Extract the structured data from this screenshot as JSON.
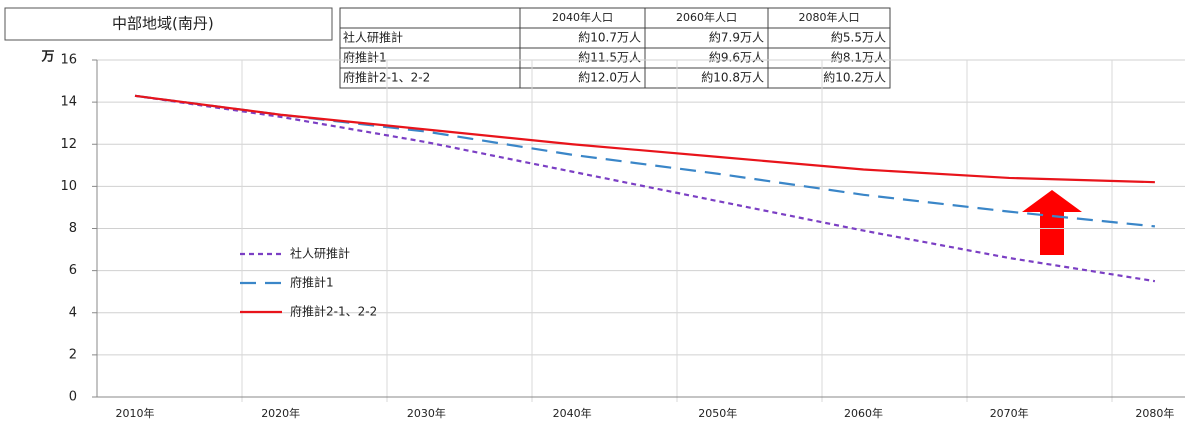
{
  "chart_data": {
    "type": "line",
    "title": "中部地域(南丹)",
    "ylabel": "万",
    "categories": [
      "2010年",
      "2020年",
      "2030年",
      "2040年",
      "2050年",
      "2060年",
      "2070年",
      "2080年"
    ],
    "series": [
      {
        "name": "社人研推計",
        "color": "#7b3fc4",
        "dash": "5,4",
        "values": [
          14.3,
          13.3,
          12.1,
          10.7,
          9.3,
          7.9,
          6.6,
          5.5
        ]
      },
      {
        "name": "府推計1",
        "color": "#3a86c8",
        "dash": "16,9",
        "values": [
          14.3,
          13.4,
          12.6,
          11.5,
          10.6,
          9.6,
          8.8,
          8.1
        ]
      },
      {
        "name": "府推計2-1、2-2",
        "color": "#e8141b",
        "dash": "none",
        "values": [
          14.3,
          13.4,
          12.7,
          12.0,
          11.4,
          10.8,
          10.4,
          10.2
        ]
      }
    ],
    "ylim": [
      0,
      16
    ],
    "yticks": [
      0,
      2,
      4,
      6,
      8,
      10,
      12,
      14,
      16
    ],
    "grid": true
  },
  "table": {
    "header": [
      "2040年人口",
      "2060年人口",
      "2080年人口"
    ],
    "rows": [
      [
        "社人研推計",
        "約10.7万人",
        "約7.9万人",
        "約5.5万人"
      ],
      [
        "府推計1",
        "約11.5万人",
        "約9.6万人",
        "約8.1万人"
      ],
      [
        "府推計2-1、2-2",
        "約12.0万人",
        "約10.8万人",
        "約10.2万人"
      ]
    ]
  }
}
